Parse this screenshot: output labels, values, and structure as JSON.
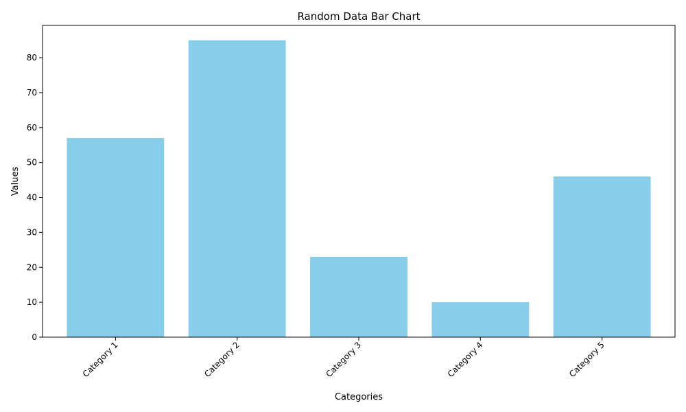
{
  "chart_data": {
    "type": "bar",
    "title": "Random Data Bar Chart",
    "xlabel": "Categories",
    "ylabel": "Values",
    "categories": [
      "Category 1",
      "Category 2",
      "Category 3",
      "Category 4",
      "Category 5"
    ],
    "values": [
      57,
      85,
      23,
      10,
      46
    ],
    "ylim": [
      0,
      89.25
    ],
    "yticks": [
      "0",
      "10",
      "20",
      "30",
      "40",
      "50",
      "60",
      "70",
      "80"
    ],
    "bar_color": "#87ceeb",
    "grid": false,
    "legend": "none"
  }
}
